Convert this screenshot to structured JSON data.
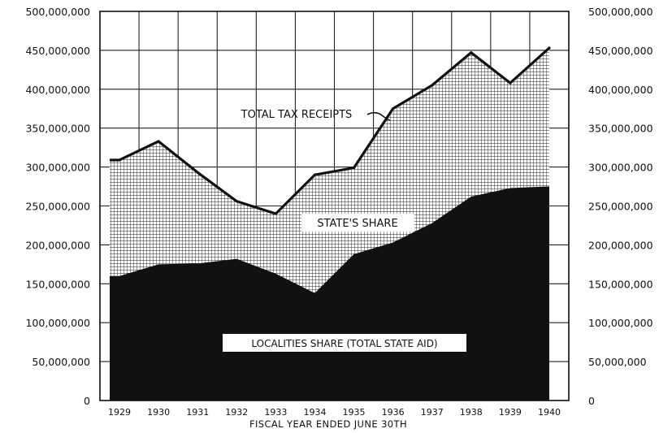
{
  "chart_data": {
    "type": "area",
    "title": "",
    "xlabel": "FISCAL YEAR ENDED JUNE 30TH",
    "ylabel": "",
    "x": [
      "1929",
      "1930",
      "1931",
      "1932",
      "1933",
      "1934",
      "1935",
      "1936",
      "1937",
      "1938",
      "1939",
      "1940"
    ],
    "ylim": [
      0,
      500000000
    ],
    "yticks": [
      "0",
      "50,000,000",
      "100,000,000",
      "150,000,000",
      "200,000,000",
      "250,000,000",
      "300,000,000",
      "350,000,000",
      "400,000,000",
      "450,000,000",
      "500,000,000"
    ],
    "yticks_right": [
      "0",
      "50,000,000",
      "100,000,000",
      "150,000,000",
      "200,000,000",
      "250,000,000",
      "300,000,000",
      "350,000,000",
      "400,000,000",
      "450,000,000",
      "500,000,000"
    ],
    "grid": true,
    "series": [
      {
        "name": "LOCALITIES SHARE (TOTAL STATE AID)",
        "values": [
          160000000,
          175000000,
          176000000,
          182000000,
          163000000,
          138000000,
          188000000,
          203000000,
          228000000,
          262000000,
          273000000,
          275000000
        ],
        "color": "#111111",
        "fill": "solid"
      },
      {
        "name": "TOTAL TAX RECEIPTS",
        "values": [
          309000000,
          333000000,
          293000000,
          256000000,
          240000000,
          290000000,
          299000000,
          375000000,
          405000000,
          447000000,
          408000000,
          453000000
        ],
        "color": "#111111",
        "fill": "line"
      }
    ],
    "annotations": [
      {
        "text": "TOTAL TAX RECEIPTS",
        "target_series": "TOTAL TAX RECEIPTS"
      },
      {
        "text": "STATE'S SHARE",
        "region": "between series"
      },
      {
        "text": "LOCALITIES SHARE (TOTAL STATE AID)",
        "region": "bottom area"
      }
    ]
  }
}
